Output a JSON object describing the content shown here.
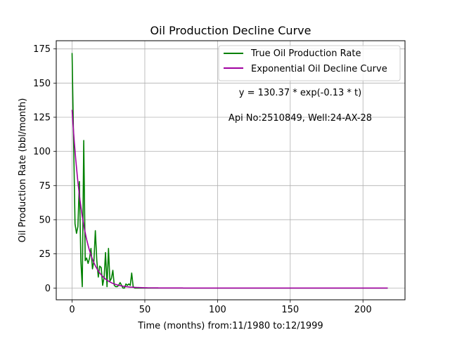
{
  "chart_data": {
    "type": "line",
    "title": "Oil Production Decline Curve",
    "xlabel": "Time (months) from:11/1980 to:12/1999",
    "ylabel": "Oil Production Rate (bbl/month)",
    "xlim": [
      -10.9,
      228.9
    ],
    "ylim": [
      -8.6,
      181
    ],
    "xticks": [
      0,
      50,
      100,
      150,
      200
    ],
    "yticks": [
      0,
      25,
      50,
      75,
      100,
      125,
      150,
      175
    ],
    "grid": true,
    "legend_position": "top-right",
    "annotations": [
      "y = 130.37 * exp(-0.13 * t)",
      "Api No:2510849, Well:24-AX-28"
    ],
    "series": [
      {
        "name": "True Oil Production Rate",
        "color": "#008000",
        "x": [
          0,
          1,
          2,
          3,
          4,
          5,
          6,
          7,
          8,
          9,
          10,
          11,
          12,
          13,
          14,
          15,
          16,
          17,
          18,
          19,
          20,
          21,
          22,
          23,
          24,
          25,
          26,
          27,
          28,
          29,
          30,
          31,
          32,
          33,
          34,
          35,
          36,
          37,
          38,
          39,
          40,
          41,
          42,
          43,
          44,
          45,
          50,
          60,
          80,
          100,
          120,
          140,
          160,
          180,
          200,
          217
        ],
        "y": [
          172,
          110,
          47,
          40,
          45,
          78,
          20,
          1,
          108,
          20,
          22,
          18,
          22,
          29,
          14,
          20,
          42,
          20,
          8,
          16,
          15,
          2,
          8,
          26,
          1,
          29,
          5,
          7,
          13,
          2,
          1,
          1,
          2,
          4,
          2,
          0,
          0,
          3,
          2,
          3,
          2,
          11,
          1,
          0,
          0,
          0,
          0,
          0,
          0,
          0,
          0,
          0,
          0,
          0,
          0,
          0
        ]
      },
      {
        "name": "Exponential Oil Decline Curve",
        "color": "#a000a0",
        "model": {
          "a": 130.37,
          "b": 0.13,
          "t_start": 0,
          "t_end": 217
        }
      }
    ]
  }
}
